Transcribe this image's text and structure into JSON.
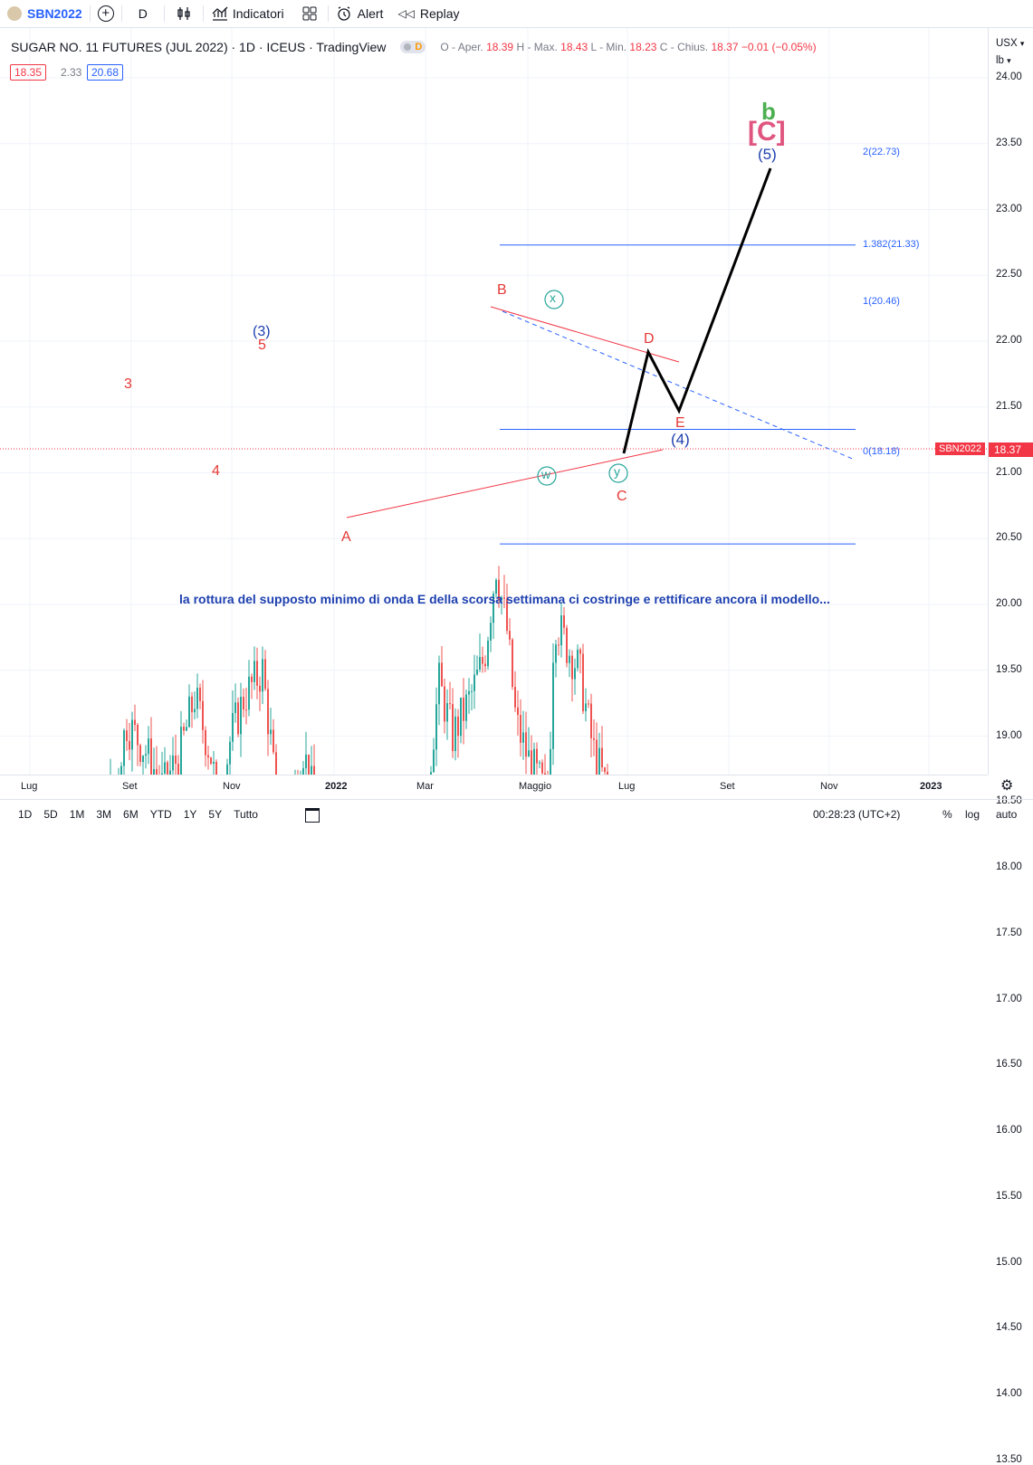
{
  "toolbar": {
    "symbol": "SBN2022",
    "interval": "D",
    "indicators": "Indicatori",
    "alert": "Alert",
    "replay": "Replay"
  },
  "legend": {
    "title": "SUGAR NO. 11 FUTURES (JUL 2022) · 1D · ICEUS · TradingView",
    "badge": "D",
    "o_label": "O - Aper.",
    "o": "18.39",
    "h_label": "H - Max.",
    "h": "18.43",
    "l_label": "L - Min.",
    "l": "18.23",
    "c_label": "C - Chius.",
    "c": "18.37",
    "chg": "−0.01 (−0.05%)",
    "bid": "18.35",
    "spread": "2.33",
    "ask": "20.68"
  },
  "axis": {
    "currency": "USX",
    "unit": "lb",
    "price_ticks": [
      "24.00",
      "23.50",
      "23.00",
      "22.50",
      "22.00",
      "21.50",
      "21.00",
      "20.50",
      "20.00",
      "19.50",
      "19.00",
      "18.50",
      "18.00",
      "17.50",
      "17.00",
      "16.50",
      "16.00",
      "15.50",
      "15.00",
      "14.50",
      "14.00",
      "13.50"
    ],
    "time_ticks": [
      "Lug",
      "Set",
      "Nov",
      "2022",
      "Mar",
      "Maggio",
      "Lug",
      "Set",
      "Nov",
      "2023"
    ],
    "current_symbol": "SBN2022",
    "current_price": "18.37"
  },
  "fib": [
    {
      "label": "2(22.73)",
      "value": 22.73
    },
    {
      "label": "1.382(21.33)",
      "value": 21.33
    },
    {
      "label": "1(20.46)",
      "value": 20.46
    },
    {
      "label": "0(18.18)",
      "value": 18.18
    }
  ],
  "waves": {
    "w3": "(3)",
    "w5": "5",
    "w3b": "3",
    "w4b": "4",
    "A": "A",
    "B": "B",
    "C": "C",
    "D": "D",
    "E": "E",
    "x": "x",
    "w": "w",
    "y": "y",
    "p4": "(4)",
    "p5": "(5)",
    "bigC": "[C]",
    "smallb": "b"
  },
  "annotation": "la rottura del supposto minimo di onda E della scorsa settimana ci costringe e rettificare ancora il modello...",
  "bottombar": {
    "ranges": [
      "1D",
      "5D",
      "1M",
      "3M",
      "6M",
      "YTD",
      "1Y",
      "5Y",
      "Tutto"
    ],
    "clock": "00:28:23 (UTC+2)",
    "pct": "%",
    "log": "log",
    "auto": "auto"
  },
  "colors": {
    "up": "#26a69a",
    "down": "#ef5350",
    "fib": "#2962ff",
    "red_label": "#e53935",
    "blue_label": "#1e40af",
    "black_path": "#000000",
    "green_b": "#4caf50",
    "pink_C": "#e0557f",
    "annotation": "#1e40af"
  }
}
